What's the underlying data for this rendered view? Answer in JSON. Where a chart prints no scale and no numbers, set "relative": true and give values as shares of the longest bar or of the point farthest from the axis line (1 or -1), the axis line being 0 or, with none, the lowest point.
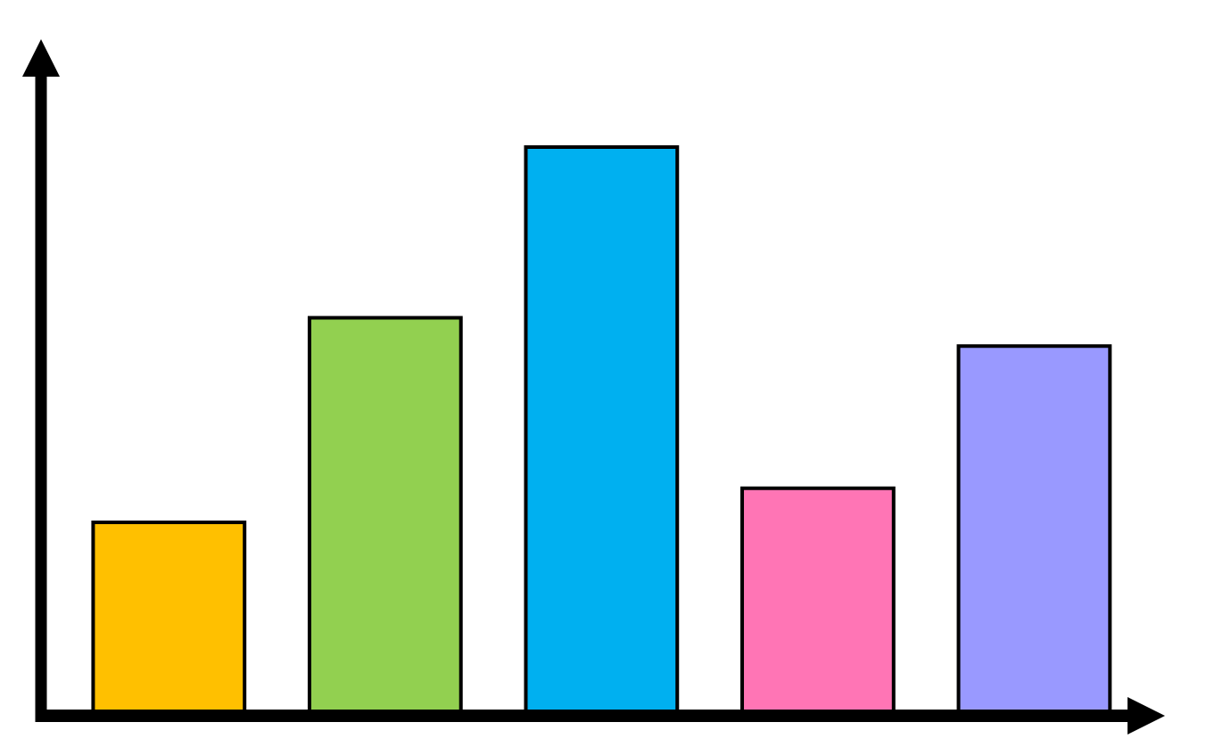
{
  "chart_data": {
    "type": "bar",
    "relative": true,
    "categories": [
      null,
      null,
      null,
      null,
      null
    ],
    "values": [
      0.34,
      0.7,
      1,
      0.4,
      0.65
    ],
    "colors": [
      "#ffc000",
      "#92d050",
      "#00b0f0",
      "#ff75b5",
      "#9999ff"
    ]
  }
}
